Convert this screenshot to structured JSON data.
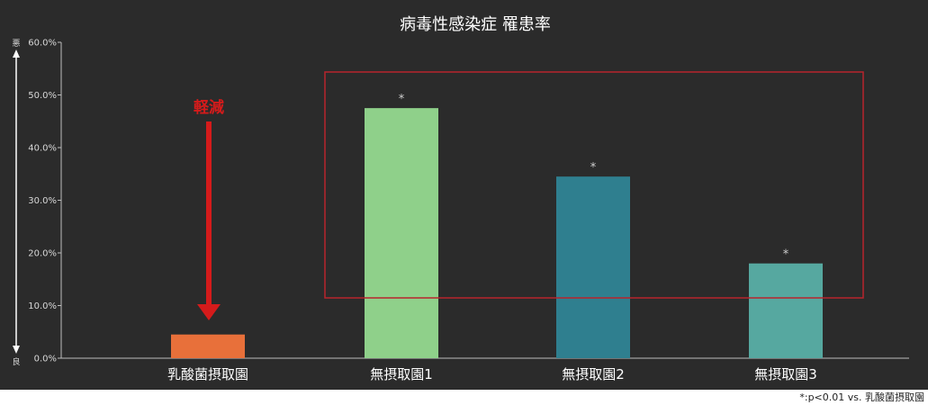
{
  "chart_data": {
    "type": "bar",
    "title": "病毒性感染症 罹患率",
    "categories": [
      "乳酸菌摂取園",
      "無摂取園1",
      "無摂取園2",
      "無摂取園3"
    ],
    "values": [
      4.5,
      47.5,
      34.5,
      18.0
    ],
    "ylim": [
      0,
      60
    ],
    "yticks": [
      "0.0%",
      "10.0%",
      "20.0%",
      "30.0%",
      "40.0%",
      "50.0%",
      "60.0%"
    ],
    "xlabel": "",
    "ylabel": "",
    "y_axis_top_label": "悪",
    "y_axis_bottom_label": "良",
    "significance_markers": [
      "",
      "*",
      "*",
      "*"
    ],
    "annotation": "軽減",
    "grid": false,
    "bar_colors": [
      "#e8703a",
      "#8fd08a",
      "#2f7f8f",
      "#56a8a0"
    ],
    "background_color": "#2b2b2b",
    "highlight_box_color": "#b8242c",
    "arrow_color": "#d51b1b",
    "footnote": "*:p<0.01 vs. 乳酸菌摂取園"
  }
}
